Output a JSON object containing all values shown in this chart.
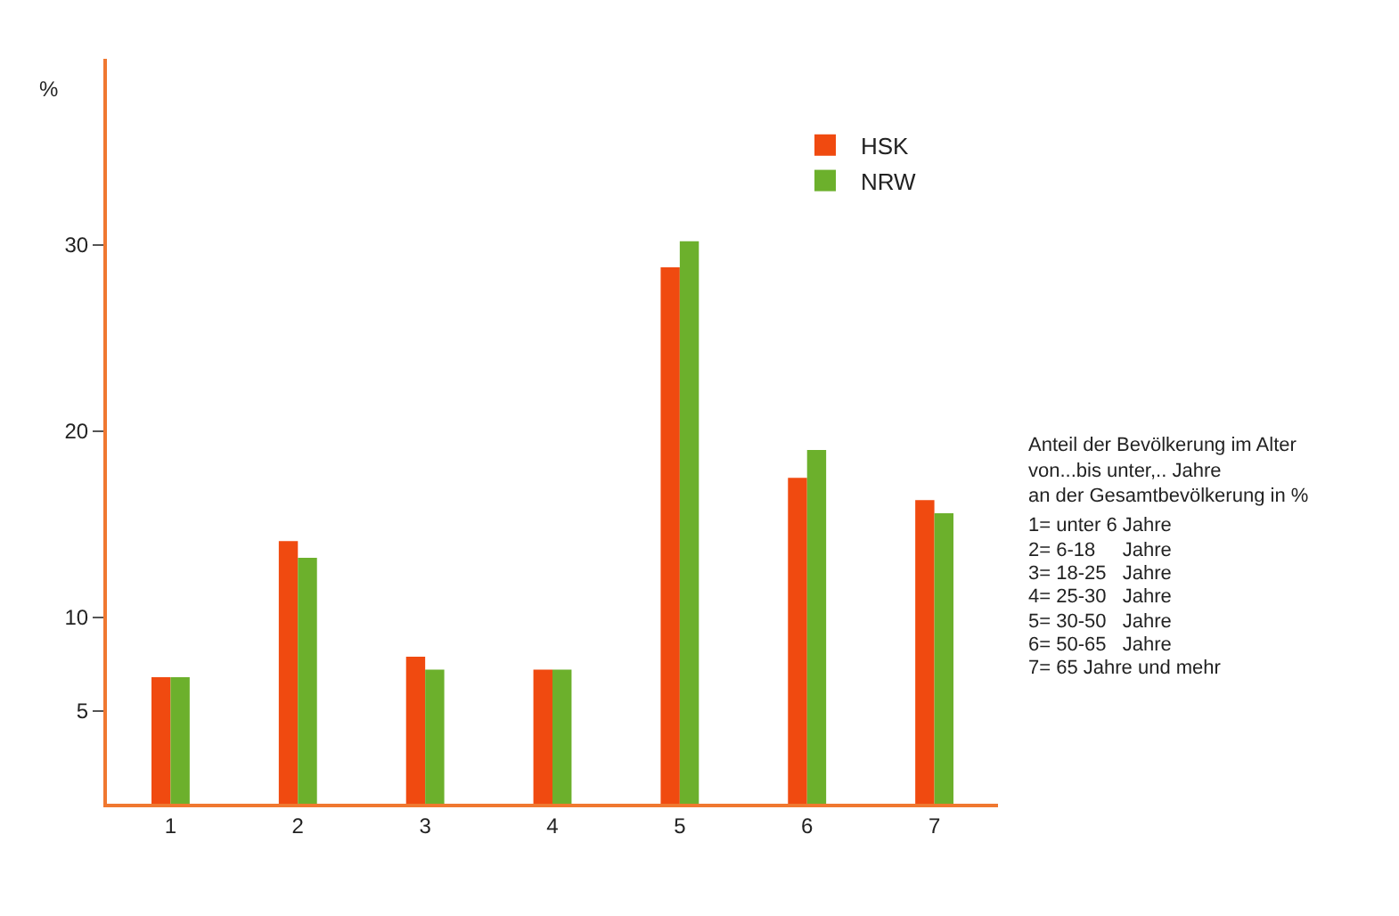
{
  "chart_data": {
    "type": "bar",
    "ylabel": "%",
    "categories": [
      "1",
      "2",
      "3",
      "4",
      "5",
      "6",
      "7"
    ],
    "series": [
      {
        "name": "HSK",
        "color": "#f04a10",
        "values": [
          6.8,
          14.1,
          7.9,
          7.2,
          28.8,
          17.5,
          16.3
        ]
      },
      {
        "name": "NRW",
        "color": "#6cb02c",
        "values": [
          6.8,
          13.2,
          7.2,
          7.2,
          30.2,
          19.0,
          15.6
        ]
      }
    ],
    "ylim": [
      0,
      40
    ],
    "yticks": [
      5,
      10,
      20,
      30
    ],
    "grid": false,
    "legend": "top right",
    "annotations": [
      "Anteil der Bevölkerung im Alter\nvon...bis unter,.. Jahre\nan der Gesamtbevölkerung in %",
      "1= unter 6 Jahre",
      "2= 6-18     Jahre",
      "3= 18-25   Jahre",
      "4= 25-30   Jahre",
      "5= 30-50   Jahre",
      "6= 50-65   Jahre",
      "7= 65 Jahre und mehr"
    ]
  }
}
